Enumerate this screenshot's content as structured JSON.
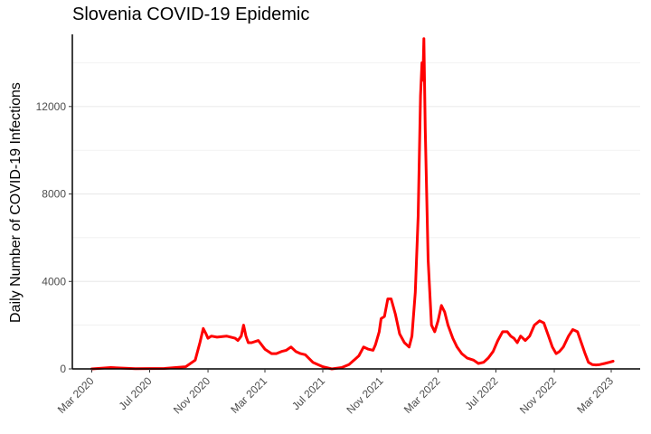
{
  "chart_data": {
    "type": "line",
    "title": "Slovenia COVID-19 Epidemic",
    "xlabel": "",
    "ylabel": "Daily Number of COVID-19 Infections",
    "ylim": [
      0,
      15300
    ],
    "xlim": [
      "2020-01-20",
      "2023-05-01"
    ],
    "y_ticks": [
      0,
      4000,
      8000,
      12000
    ],
    "y_tick_labels": [
      "0",
      "4000",
      "8000",
      "12000"
    ],
    "x_ticks": [
      "2020-03-01",
      "2020-07-01",
      "2020-11-01",
      "2021-03-01",
      "2021-07-01",
      "2021-11-01",
      "2022-03-01",
      "2022-07-01",
      "2022-11-01",
      "2023-03-01"
    ],
    "x_tick_labels": [
      "Mar 2020",
      "Jul 2020",
      "Nov 2020",
      "Mar 2021",
      "Jul 2021",
      "Nov 2021",
      "Mar 2022",
      "Jul 2022",
      "Nov 2022",
      "Mar 2023"
    ],
    "grid": "horizontal",
    "colors": {
      "line": "#ff0000",
      "axis": "#000000",
      "grid": "#ebebeb",
      "tick_text": "#4d4d4d"
    },
    "series": [
      {
        "x": [
          "2020-03-01",
          "2020-04-10",
          "2020-06-01",
          "2020-08-01",
          "2020-09-15",
          "2020-10-05",
          "2020-10-15",
          "2020-10-22",
          "2020-10-28",
          "2020-11-01",
          "2020-11-08",
          "2020-11-20",
          "2020-12-10",
          "2020-12-28",
          "2021-01-03",
          "2021-01-10",
          "2021-01-15",
          "2021-01-20",
          "2021-01-25",
          "2021-02-01",
          "2021-02-15",
          "2021-03-01",
          "2021-03-15",
          "2021-03-25",
          "2021-04-05",
          "2021-04-15",
          "2021-04-25",
          "2021-05-05",
          "2021-05-15",
          "2021-05-25",
          "2021-06-10",
          "2021-07-01",
          "2021-07-20",
          "2021-08-10",
          "2021-08-25",
          "2021-09-05",
          "2021-09-15",
          "2021-09-25",
          "2021-10-05",
          "2021-10-15",
          "2021-10-20",
          "2021-10-28",
          "2021-11-01",
          "2021-11-08",
          "2021-11-15",
          "2021-11-22",
          "2021-12-01",
          "2021-12-10",
          "2021-12-20",
          "2021-12-30",
          "2022-01-05",
          "2022-01-12",
          "2022-01-18",
          "2022-01-23",
          "2022-01-26",
          "2022-01-28",
          "2022-01-30",
          "2022-02-02",
          "2022-02-08",
          "2022-02-15",
          "2022-02-22",
          "2022-03-01",
          "2022-03-08",
          "2022-03-15",
          "2022-03-22",
          "2022-04-01",
          "2022-04-10",
          "2022-04-20",
          "2022-05-01",
          "2022-05-15",
          "2022-05-25",
          "2022-06-05",
          "2022-06-15",
          "2022-06-25",
          "2022-07-05",
          "2022-07-15",
          "2022-07-25",
          "2022-08-01",
          "2022-08-08",
          "2022-08-15",
          "2022-08-22",
          "2022-09-01",
          "2022-09-10",
          "2022-09-20",
          "2022-10-01",
          "2022-10-10",
          "2022-10-20",
          "2022-10-28",
          "2022-11-05",
          "2022-11-12",
          "2022-11-20",
          "2022-12-01",
          "2022-12-10",
          "2022-12-20",
          "2022-12-28",
          "2023-01-05",
          "2023-01-12",
          "2023-01-20",
          "2023-01-28",
          "2023-02-05",
          "2023-02-15",
          "2023-02-25",
          "2023-03-05"
        ],
        "y": [
          0,
          60,
          10,
          20,
          100,
          400,
          1200,
          1850,
          1600,
          1400,
          1500,
          1450,
          1500,
          1400,
          1300,
          1500,
          2000,
          1500,
          1200,
          1200,
          1300,
          900,
          700,
          700,
          800,
          850,
          1000,
          800,
          700,
          650,
          300,
          100,
          0,
          60,
          200,
          400,
          600,
          1000,
          900,
          850,
          1100,
          1700,
          2300,
          2400,
          3200,
          3200,
          2500,
          1600,
          1200,
          1000,
          1500,
          3500,
          7000,
          12500,
          14000,
          13200,
          15100,
          11000,
          5000,
          2000,
          1700,
          2200,
          2900,
          2600,
          2000,
          1400,
          1000,
          700,
          500,
          400,
          250,
          300,
          500,
          800,
          1300,
          1700,
          1700,
          1500,
          1400,
          1200,
          1500,
          1300,
          1500,
          2000,
          2200,
          2100,
          1500,
          1000,
          700,
          800,
          1000,
          1500,
          1800,
          1700,
          1200,
          700,
          300,
          200,
          180,
          200,
          250,
          300,
          350
        ]
      }
    ]
  }
}
